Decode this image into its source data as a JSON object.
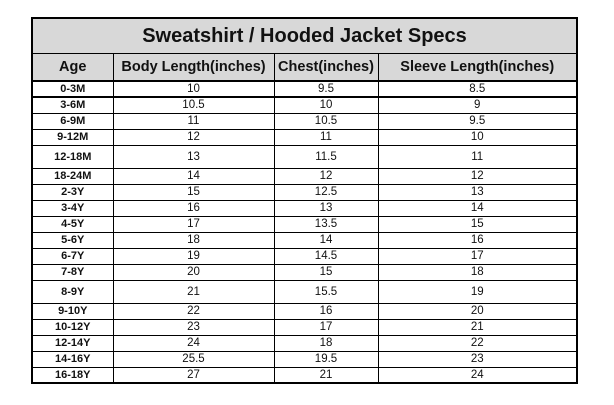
{
  "table": {
    "title": "Sweatshirt / Hooded Jacket Specs",
    "columns": [
      "Age",
      "Body Length(inches)",
      "Chest(inches)",
      "Sleeve Length(inches)"
    ],
    "rows": [
      [
        "0-3M",
        "10",
        "9.5",
        "8.5"
      ],
      [
        "3-6M",
        "10.5",
        "10",
        "9"
      ],
      [
        "6-9M",
        "11",
        "10.5",
        "9.5"
      ],
      [
        "9-12M",
        "12",
        "11",
        "10"
      ],
      [
        "12-18M",
        "13",
        "11.5",
        "11"
      ],
      [
        "18-24M",
        "14",
        "12",
        "12"
      ],
      [
        "2-3Y",
        "15",
        "12.5",
        "13"
      ],
      [
        "3-4Y",
        "16",
        "13",
        "14"
      ],
      [
        "4-5Y",
        "17",
        "13.5",
        "15"
      ],
      [
        "5-6Y",
        "18",
        "14",
        "16"
      ],
      [
        "6-7Y",
        "19",
        "14.5",
        "17"
      ],
      [
        "7-8Y",
        "20",
        "15",
        "18"
      ],
      [
        "8-9Y",
        "21",
        "15.5",
        "19"
      ],
      [
        "9-10Y",
        "22",
        "16",
        "20"
      ],
      [
        "10-12Y",
        "23",
        "17",
        "21"
      ],
      [
        "12-14Y",
        "24",
        "18",
        "22"
      ],
      [
        "14-16Y",
        "25.5",
        "19.5",
        "23"
      ],
      [
        "16-18Y",
        "27",
        "21",
        "24"
      ]
    ]
  },
  "colors": {
    "header_bg": "#d8d8d8",
    "border": "#000000",
    "text": "#111111"
  }
}
